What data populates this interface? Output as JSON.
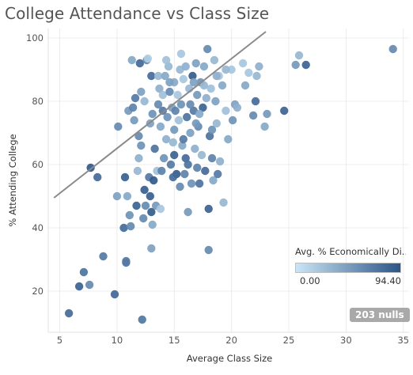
{
  "chart_data": {
    "type": "scatter",
    "title": "College Attendance vs Class Size",
    "xlabel": "Average Class Size",
    "ylabel": "% Attending College",
    "xlim": [
      4,
      35.5
    ],
    "ylim": [
      7,
      103
    ],
    "xticks": [
      "5",
      "10",
      "15",
      "20",
      "25",
      "30",
      "35"
    ],
    "yticks": [
      "20",
      "40",
      "60",
      "80",
      "100"
    ],
    "grid": true,
    "trend_line": {
      "x": [
        4.5,
        23
      ],
      "y": [
        49.5,
        102
      ]
    },
    "color_legend": {
      "title": "Avg. % Economically Di..",
      "min_label": "0.00",
      "max_label": "94.40",
      "min_color": "#c9e6f7",
      "max_color": "#2c5587"
    },
    "nulls_badge": "203 nulls",
    "points": [
      [
        5.8,
        13,
        80
      ],
      [
        6.7,
        21.5,
        85
      ],
      [
        7.1,
        26,
        75
      ],
      [
        7.6,
        22,
        60
      ],
      [
        7.7,
        59,
        92
      ],
      [
        8.3,
        56,
        80
      ],
      [
        8.8,
        31,
        70
      ],
      [
        9.8,
        19,
        82
      ],
      [
        10,
        50,
        45
      ],
      [
        10.1,
        72,
        60
      ],
      [
        10.6,
        40,
        80
      ],
      [
        10.7,
        56,
        88
      ],
      [
        10.8,
        29,
        75
      ],
      [
        10.8,
        29.5,
        70
      ],
      [
        10.9,
        50,
        40
      ],
      [
        11,
        77,
        50
      ],
      [
        11.1,
        44,
        55
      ],
      [
        11.2,
        40.5,
        60
      ],
      [
        11.3,
        93,
        40
      ],
      [
        11.4,
        78,
        65
      ],
      [
        11.5,
        74,
        50
      ],
      [
        11.6,
        81,
        70
      ],
      [
        11.7,
        47,
        85
      ],
      [
        11.8,
        58,
        30
      ],
      [
        11.9,
        62,
        35
      ],
      [
        12,
        92,
        82
      ],
      [
        12.1,
        83,
        45
      ],
      [
        12.1,
        66,
        55
      ],
      [
        12.2,
        11,
        72
      ],
      [
        12.3,
        43,
        60
      ],
      [
        12.4,
        52,
        88
      ],
      [
        12.5,
        47,
        60
      ],
      [
        12.6,
        93,
        60
      ],
      [
        12.7,
        93.5,
        15
      ],
      [
        12.8,
        56,
        70
      ],
      [
        12.9,
        50,
        88
      ],
      [
        13,
        45,
        90
      ],
      [
        13,
        33.5,
        45
      ],
      [
        13,
        88,
        80
      ],
      [
        13.1,
        41,
        40
      ],
      [
        13.2,
        55,
        92
      ],
      [
        13.3,
        65,
        75
      ],
      [
        13.4,
        47,
        50
      ],
      [
        13.5,
        58,
        25
      ],
      [
        13.6,
        88,
        30
      ],
      [
        13.7,
        84,
        35
      ],
      [
        13.8,
        46,
        20
      ],
      [
        13.8,
        72,
        40
      ],
      [
        13.9,
        58,
        65
      ],
      [
        14,
        82,
        25
      ],
      [
        14,
        77,
        70
      ],
      [
        14.1,
        62,
        55
      ],
      [
        14.2,
        88,
        40
      ],
      [
        14.3,
        68,
        35
      ],
      [
        14.4,
        75,
        55
      ],
      [
        14.5,
        91,
        30
      ],
      [
        14.6,
        83,
        60
      ],
      [
        14.7,
        60,
        70
      ],
      [
        14.8,
        78,
        45
      ],
      [
        14.9,
        67,
        30
      ],
      [
        15,
        86,
        40
      ],
      [
        15,
        63,
        85
      ],
      [
        15,
        71,
        50
      ],
      [
        15.2,
        57,
        90
      ],
      [
        15.3,
        82,
        20
      ],
      [
        15.4,
        74,
        25
      ],
      [
        15.5,
        90,
        30
      ],
      [
        15.5,
        53,
        60
      ],
      [
        15.6,
        79,
        55
      ],
      [
        15.7,
        66,
        40
      ],
      [
        15.8,
        87,
        20
      ],
      [
        15.9,
        57,
        65
      ],
      [
        16,
        91,
        35
      ],
      [
        16,
        62,
        80
      ],
      [
        16.1,
        75,
        75
      ],
      [
        16.2,
        45,
        50
      ],
      [
        16.3,
        84,
        30
      ],
      [
        16.4,
        70,
        45
      ],
      [
        16.5,
        54,
        55
      ],
      [
        16.6,
        88,
        90
      ],
      [
        16.7,
        77,
        70
      ],
      [
        16.8,
        65,
        35
      ],
      [
        16.9,
        92,
        45
      ],
      [
        17,
        59,
        65
      ],
      [
        17,
        82,
        50
      ],
      [
        17.1,
        72,
        60
      ],
      [
        17.2,
        54,
        75
      ],
      [
        17.3,
        86,
        55
      ],
      [
        17.4,
        63,
        30
      ],
      [
        17.5,
        78,
        85
      ],
      [
        17.6,
        91,
        40
      ],
      [
        17.7,
        58,
        80
      ],
      [
        17.8,
        81,
        35
      ],
      [
        17.9,
        96.5,
        60
      ],
      [
        18,
        33,
        60
      ],
      [
        18,
        46,
        85
      ],
      [
        18.1,
        69,
        75
      ],
      [
        18.2,
        84,
        25
      ],
      [
        18.3,
        71,
        55
      ],
      [
        18.4,
        55,
        40
      ],
      [
        18.5,
        93,
        30
      ],
      [
        18.6,
        80,
        45
      ],
      [
        18.7,
        73,
        30
      ],
      [
        18.8,
        57,
        70
      ],
      [
        18.9,
        88,
        20
      ],
      [
        19,
        61,
        35
      ],
      [
        19.2,
        85,
        40
      ],
      [
        19.3,
        48,
        30
      ],
      [
        19.5,
        77,
        25
      ],
      [
        19.7,
        68,
        40
      ],
      [
        20,
        90,
        20
      ],
      [
        20.1,
        74,
        55
      ],
      [
        20.3,
        79,
        45
      ],
      [
        20.5,
        78,
        35
      ],
      [
        21,
        92,
        20
      ],
      [
        21.2,
        85,
        40
      ],
      [
        21.5,
        89,
        20
      ],
      [
        21.9,
        75.5,
        60
      ],
      [
        22.1,
        80,
        80
      ],
      [
        22.2,
        88,
        30
      ],
      [
        22.4,
        91,
        35
      ],
      [
        22.9,
        72,
        40
      ],
      [
        23.1,
        76,
        50
      ],
      [
        24.6,
        77,
        85
      ],
      [
        25.6,
        91.5,
        50
      ],
      [
        25.9,
        94.5,
        30
      ],
      [
        26.5,
        91.5,
        85
      ],
      [
        34.1,
        96.5,
        60
      ],
      [
        11.9,
        69,
        60
      ],
      [
        12.4,
        80,
        30
      ],
      [
        13.1,
        76,
        55
      ],
      [
        14.6,
        86,
        45
      ],
      [
        15.1,
        77,
        65
      ],
      [
        15.8,
        68,
        70
      ],
      [
        16.4,
        79,
        60
      ],
      [
        16.9,
        73,
        50
      ],
      [
        17.6,
        85,
        30
      ],
      [
        18.7,
        88,
        35
      ],
      [
        19.5,
        90,
        30
      ],
      [
        14.3,
        93,
        25
      ],
      [
        15.6,
        95,
        20
      ],
      [
        13.6,
        79,
        60
      ],
      [
        17.2,
        76,
        40
      ],
      [
        12.9,
        73,
        45
      ],
      [
        14.9,
        56,
        80
      ],
      [
        16.2,
        60,
        75
      ],
      [
        18.3,
        62,
        65
      ],
      [
        16.7,
        86,
        45
      ]
    ]
  }
}
